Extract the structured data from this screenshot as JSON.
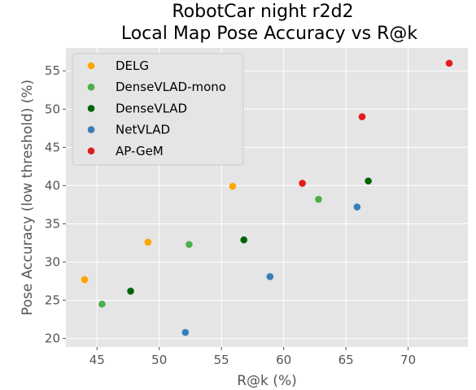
{
  "chart_data": {
    "type": "scatter",
    "title": [
      "RobotCar night r2d2",
      "Local Map Pose Accuracy vs R@k"
    ],
    "xlabel": "R@k (%)",
    "ylabel": "Pose Accuracy (low threshold) (%)",
    "xlim": [
      42.5,
      74.8
    ],
    "ylim": [
      18.9,
      58.0
    ],
    "xticks": [
      45,
      50,
      55,
      60,
      65,
      70
    ],
    "yticks": [
      20,
      25,
      30,
      35,
      40,
      45,
      50,
      55
    ],
    "grid": true,
    "legend_position": "top-left",
    "series": [
      {
        "name": "DELG",
        "color": "#ffa500",
        "points": [
          [
            44.0,
            27.7
          ],
          [
            49.1,
            32.6
          ],
          [
            55.9,
            39.9
          ]
        ]
      },
      {
        "name": "DenseVLAD-mono",
        "color": "#4daf4a",
        "points": [
          [
            45.4,
            24.5
          ],
          [
            52.4,
            32.3
          ],
          [
            62.8,
            38.2
          ]
        ]
      },
      {
        "name": "DenseVLAD",
        "color": "#006400",
        "points": [
          [
            47.7,
            26.2
          ],
          [
            56.8,
            32.9
          ],
          [
            66.8,
            40.6
          ]
        ]
      },
      {
        "name": "NetVLAD",
        "color": "#377eb8",
        "points": [
          [
            52.1,
            20.8
          ],
          [
            58.9,
            28.1
          ],
          [
            65.9,
            37.2
          ]
        ]
      },
      {
        "name": "AP-GeM",
        "color": "#e41a1c",
        "points": [
          [
            61.5,
            40.3
          ],
          [
            66.3,
            49.0
          ],
          [
            73.3,
            56.0
          ]
        ]
      }
    ]
  }
}
